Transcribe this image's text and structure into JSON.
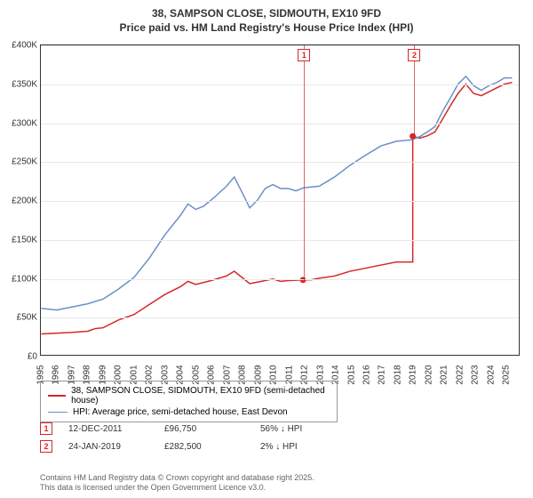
{
  "title_line1": "38, SAMPSON CLOSE, SIDMOUTH, EX10 9FD",
  "title_line2": "Price paid vs. HM Land Registry's House Price Index (HPI)",
  "chart": {
    "type": "line",
    "background_color": "#ffffff",
    "border_color": "#333333",
    "grid_color": "#e8e8e8",
    "ylim": [
      0,
      400000
    ],
    "ytick_step": 50000,
    "yticks": [
      "£0",
      "£50K",
      "£100K",
      "£150K",
      "£200K",
      "£250K",
      "£300K",
      "£350K",
      "£400K"
    ],
    "xlim": [
      1995,
      2025.9
    ],
    "xticks": [
      1995,
      1996,
      1997,
      1998,
      1999,
      2000,
      2001,
      2002,
      2003,
      2004,
      2005,
      2006,
      2007,
      2008,
      2009,
      2010,
      2011,
      2012,
      2013,
      2014,
      2015,
      2016,
      2017,
      2018,
      2019,
      2020,
      2021,
      2022,
      2023,
      2024,
      2025
    ],
    "label_fontsize": 10,
    "line_width": 1.5,
    "series": [
      {
        "name": "38, SAMPSON CLOSE, SIDMOUTH, EX10 9FD (semi-detached house)",
        "color": "#d62728",
        "points": [
          [
            1995,
            27000
          ],
          [
            1996,
            28000
          ],
          [
            1997,
            29000
          ],
          [
            1998,
            30500
          ],
          [
            1998.5,
            34000
          ],
          [
            1999,
            35000
          ],
          [
            2000,
            45000
          ],
          [
            2001,
            52000
          ],
          [
            2002,
            65000
          ],
          [
            2003,
            78000
          ],
          [
            2004,
            88000
          ],
          [
            2004.5,
            95000
          ],
          [
            2005,
            91000
          ],
          [
            2006,
            96000
          ],
          [
            2007,
            102000
          ],
          [
            2007.5,
            108000
          ],
          [
            2008,
            100000
          ],
          [
            2008.5,
            92000
          ],
          [
            2009,
            94000
          ],
          [
            2010,
            98000
          ],
          [
            2010.5,
            95000
          ],
          [
            2011,
            96000
          ],
          [
            2011.95,
            96750
          ],
          [
            2011.95,
            96750
          ],
          [
            2012.5,
            97000
          ],
          [
            2013,
            99000
          ],
          [
            2014,
            102000
          ],
          [
            2015,
            108000
          ],
          [
            2016,
            112000
          ],
          [
            2017,
            116000
          ],
          [
            2018,
            120000
          ],
          [
            2019.06,
            120000
          ],
          [
            2019.06,
            282500
          ],
          [
            2019.5,
            280000
          ],
          [
            2020,
            283000
          ],
          [
            2020.5,
            288000
          ],
          [
            2021,
            305000
          ],
          [
            2021.5,
            322000
          ],
          [
            2022,
            338000
          ],
          [
            2022.5,
            350000
          ],
          [
            2023,
            338000
          ],
          [
            2023.5,
            335000
          ],
          [
            2024,
            340000
          ],
          [
            2024.5,
            345000
          ],
          [
            2025,
            350000
          ],
          [
            2025.5,
            352000
          ]
        ]
      },
      {
        "name": "HPI: Average price, semi-detached house, East Devon",
        "color": "#6b8fc9",
        "points": [
          [
            1995,
            60000
          ],
          [
            1996,
            58000
          ],
          [
            1997,
            62000
          ],
          [
            1998,
            66000
          ],
          [
            1999,
            72000
          ],
          [
            2000,
            85000
          ],
          [
            2001,
            100000
          ],
          [
            2002,
            125000
          ],
          [
            2003,
            155000
          ],
          [
            2004,
            180000
          ],
          [
            2004.5,
            195000
          ],
          [
            2005,
            188000
          ],
          [
            2005.5,
            192000
          ],
          [
            2006,
            200000
          ],
          [
            2007,
            218000
          ],
          [
            2007.5,
            230000
          ],
          [
            2008,
            210000
          ],
          [
            2008.5,
            190000
          ],
          [
            2009,
            200000
          ],
          [
            2009.5,
            215000
          ],
          [
            2010,
            220000
          ],
          [
            2010.5,
            215000
          ],
          [
            2011,
            215000
          ],
          [
            2011.5,
            212000
          ],
          [
            2012,
            216000
          ],
          [
            2013,
            218000
          ],
          [
            2014,
            230000
          ],
          [
            2015,
            245000
          ],
          [
            2016,
            258000
          ],
          [
            2017,
            270000
          ],
          [
            2018,
            276000
          ],
          [
            2019,
            278000
          ],
          [
            2019.5,
            282000
          ],
          [
            2020,
            288000
          ],
          [
            2020.5,
            295000
          ],
          [
            2021,
            315000
          ],
          [
            2021.5,
            332000
          ],
          [
            2022,
            350000
          ],
          [
            2022.5,
            360000
          ],
          [
            2023,
            348000
          ],
          [
            2023.5,
            342000
          ],
          [
            2024,
            348000
          ],
          [
            2024.5,
            352000
          ],
          [
            2025,
            358000
          ],
          [
            2025.5,
            358000
          ]
        ]
      }
    ],
    "markers": [
      {
        "n": "1",
        "x": 2011.95,
        "y": 96750
      },
      {
        "n": "2",
        "x": 2019.06,
        "y": 282500
      }
    ]
  },
  "legend": {
    "border_color": "#999999",
    "items": [
      {
        "color": "#d62728",
        "width": 2,
        "label": "38, SAMPSON CLOSE, SIDMOUTH, EX10 9FD (semi-detached house)"
      },
      {
        "color": "#6b8fc9",
        "width": 1.5,
        "label": "HPI: Average price, semi-detached house, East Devon"
      }
    ]
  },
  "transactions": [
    {
      "n": "1",
      "date": "12-DEC-2011",
      "price": "£96,750",
      "diff": "56% ↓ HPI"
    },
    {
      "n": "2",
      "date": "24-JAN-2019",
      "price": "£282,500",
      "diff": "2% ↓ HPI"
    }
  ],
  "footer_line1": "Contains HM Land Registry data © Crown copyright and database right 2025.",
  "footer_line2": "This data is licensed under the Open Government Licence v3.0."
}
